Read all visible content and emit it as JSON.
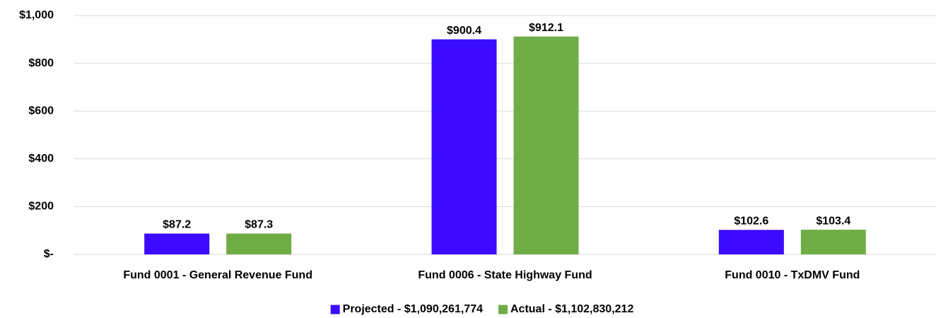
{
  "chart_data": {
    "type": "bar",
    "categories": [
      "Fund 0001 - General Revenue Fund",
      "Fund 0006 - State Highway Fund",
      "Fund 0010 - TxDMV Fund"
    ],
    "series": [
      {
        "name": "Projected - $1,090,261,774",
        "color": "#3b0aff",
        "values": [
          87.2,
          900.4,
          102.6
        ],
        "value_labels": [
          "$87.2",
          "$900.4",
          "$102.6"
        ]
      },
      {
        "name": "Actual - $1,102,830,212",
        "color": "#70ad47",
        "values": [
          87.3,
          912.1,
          103.4
        ],
        "value_labels": [
          "$87.3",
          "$912.1",
          "$103.4"
        ]
      }
    ],
    "ylim": [
      0,
      1000
    ],
    "yticks": [
      {
        "value": 0,
        "label": "$-"
      },
      {
        "value": 200,
        "label": "$200"
      },
      {
        "value": 400,
        "label": "$400"
      },
      {
        "value": 600,
        "label": "$600"
      },
      {
        "value": 800,
        "label": "$800"
      },
      {
        "value": 1000,
        "label": "$1,000"
      }
    ],
    "grid": true,
    "legend": "bottom"
  }
}
